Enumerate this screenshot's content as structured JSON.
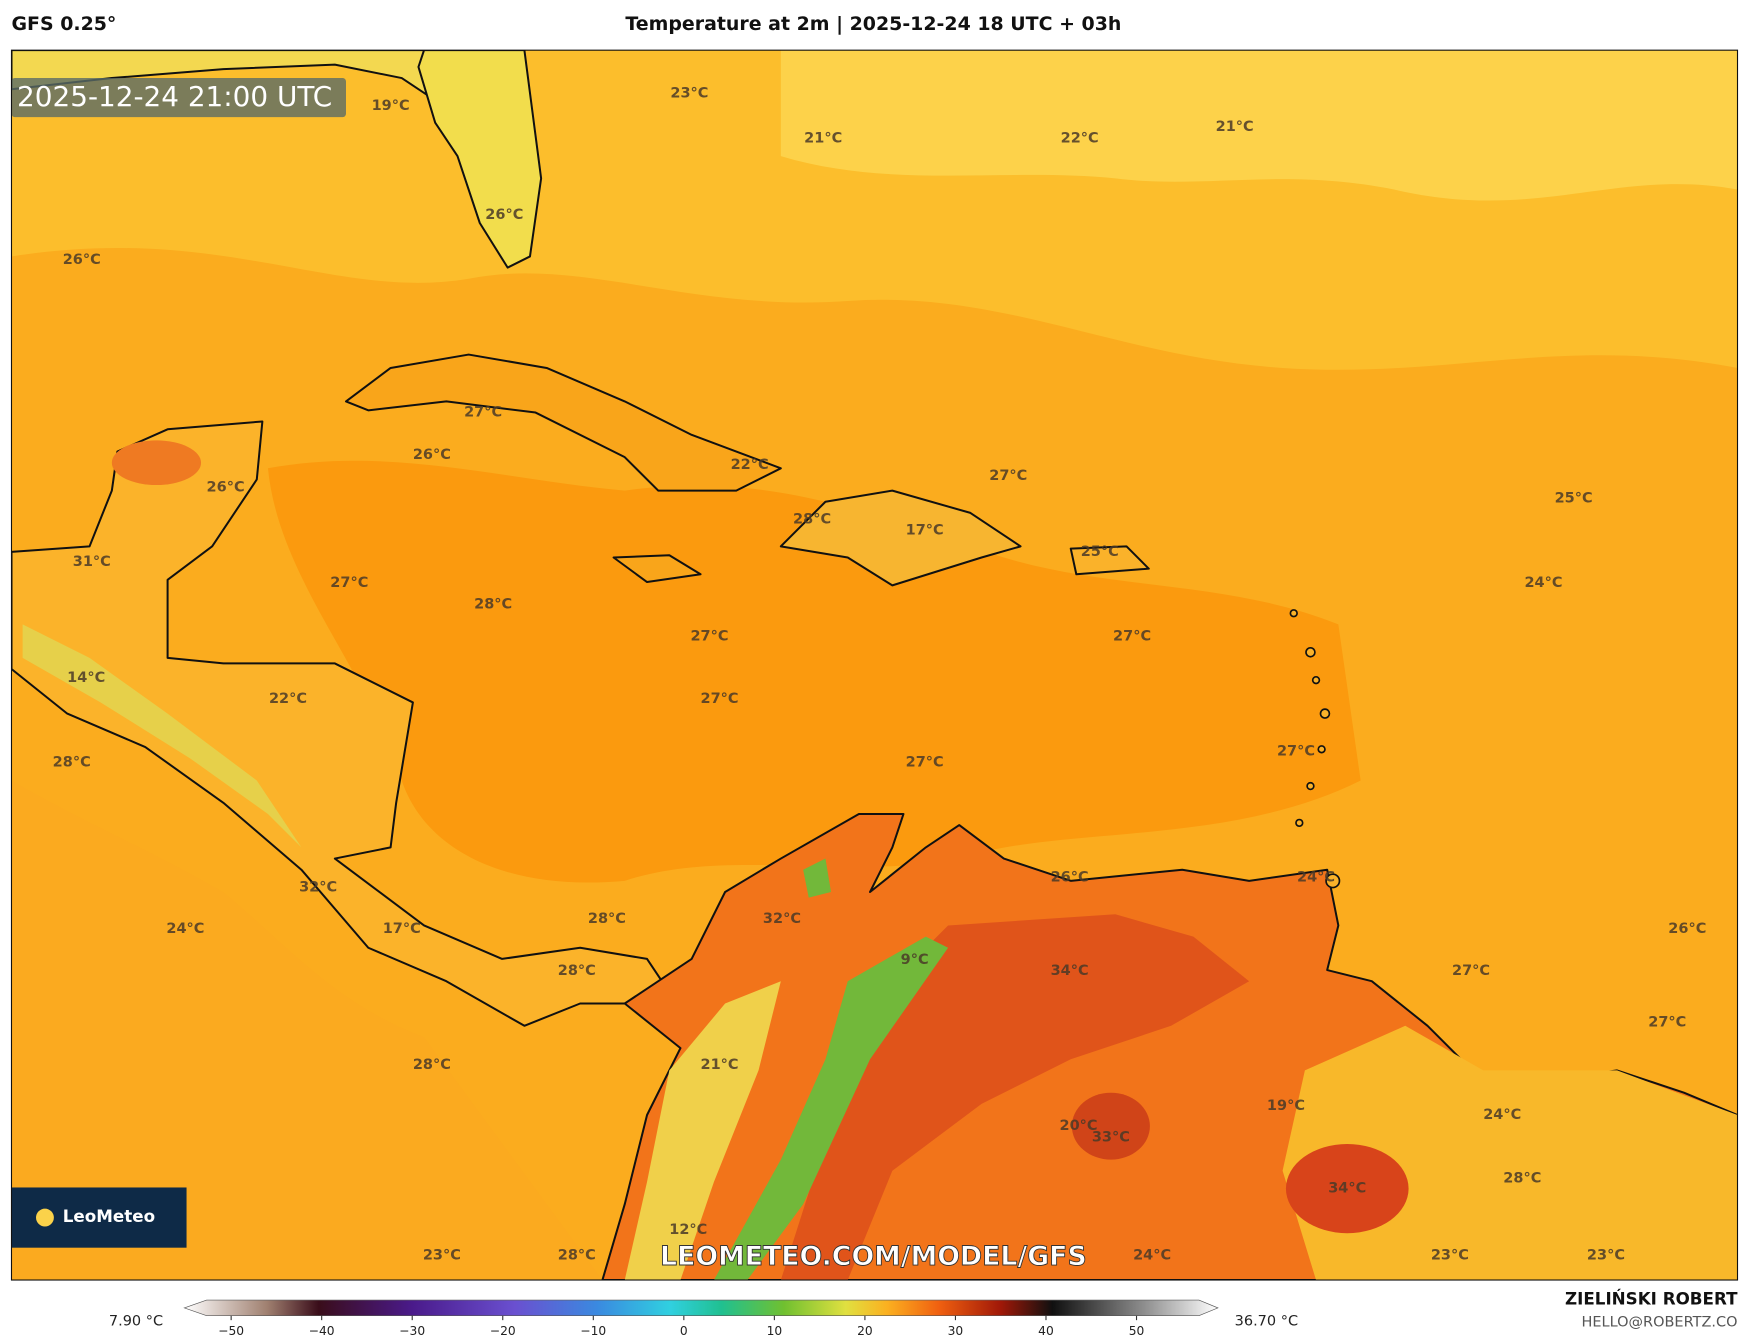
{
  "header": {
    "model": "GFS 0.25°",
    "title": "Temperature at 2m | 2025-12-24 18 UTC + 03h"
  },
  "map": {
    "valid_time": "2025-12-24 21:00 UTC",
    "labels": [
      "19°C",
      "23°C",
      "21°C",
      "22°C",
      "21°C",
      "26°C",
      "26°C",
      "27°C",
      "26°C",
      "26°C",
      "22°C",
      "27°C",
      "25°C",
      "28°C",
      "17°C",
      "31°C",
      "25°C",
      "27°C",
      "24°C",
      "28°C",
      "27°C",
      "27°C",
      "14°C",
      "22°C",
      "27°C",
      "28°C",
      "27°C",
      "27°C",
      "26°C",
      "24°C",
      "32°C",
      "32°C",
      "28°C",
      "24°C",
      "17°C",
      "26°C",
      "9°C",
      "34°C",
      "28°C",
      "27°C",
      "27°C",
      "28°C",
      "21°C",
      "19°C",
      "24°C",
      "20°C",
      "33°C",
      "28°C",
      "34°C",
      "12°C",
      "23°C",
      "28°C",
      "24°C",
      "23°C",
      "23°C"
    ],
    "watermark": "LEOMETEO.COM/MODEL/GFS",
    "logo": "LeoMeteo"
  },
  "colorbar": {
    "min_label": "7.90 °C",
    "max_label": "36.70 °C",
    "ticks": [
      {
        "value": -50,
        "label": "−50"
      },
      {
        "value": -40,
        "label": "−40"
      },
      {
        "value": -30,
        "label": "−30"
      },
      {
        "value": -20,
        "label": "−20"
      },
      {
        "value": -10,
        "label": "−10"
      },
      0,
      10,
      20,
      30,
      40,
      50
    ]
  },
  "credits": {
    "author": "ZIELIŃSKI ROBERT",
    "email": "HELLO@ROBERTZ.CO"
  }
}
